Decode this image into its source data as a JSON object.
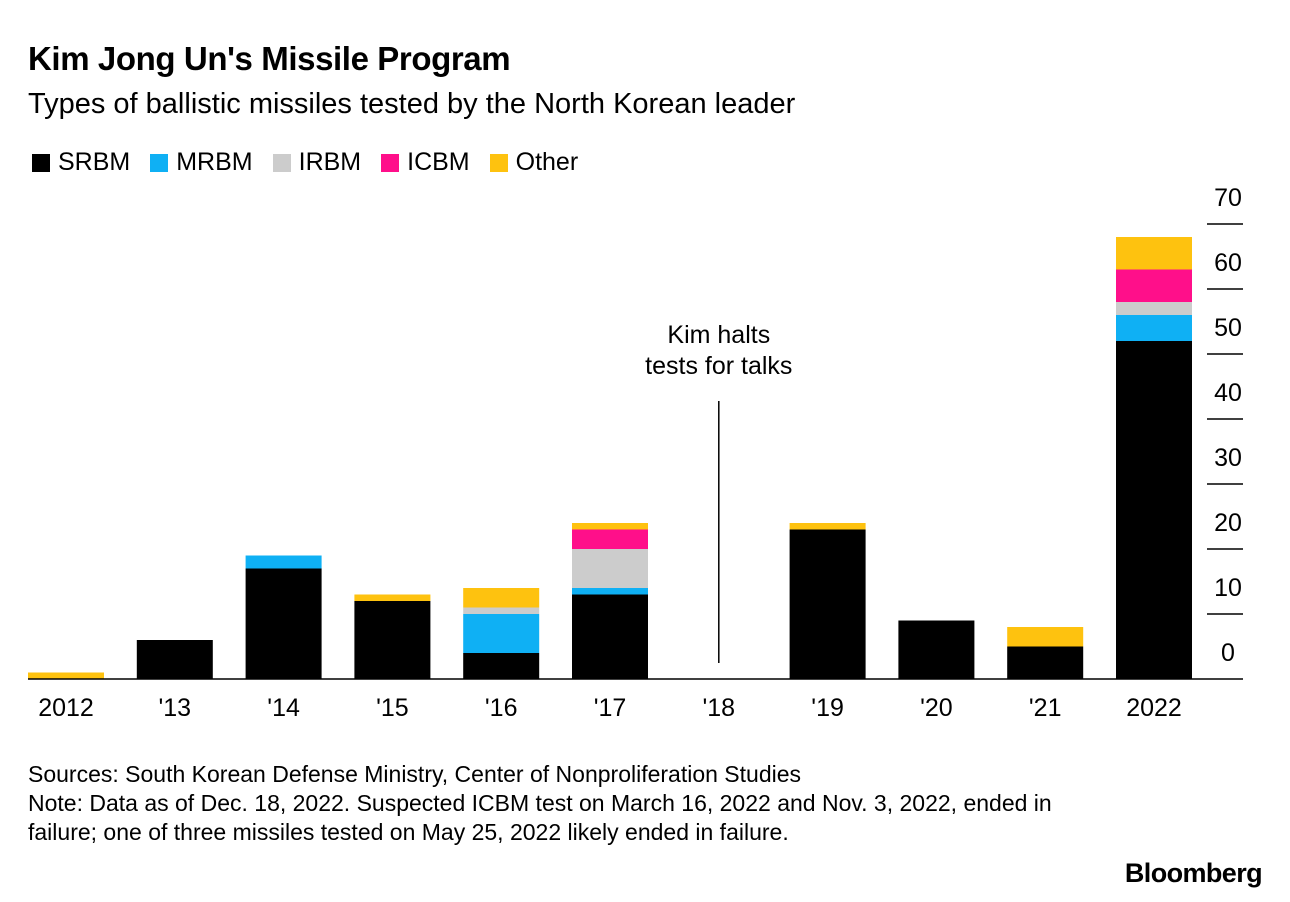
{
  "header": {
    "title": "Kim Jong Un's Missile Program",
    "subtitle": "Types of ballistic missiles tested by the North Korean leader"
  },
  "legend": [
    {
      "label": "SRBM",
      "color": "#000000"
    },
    {
      "label": "MRBM",
      "color": "#0fb0f4"
    },
    {
      "label": "IRBM",
      "color": "#cccccc"
    },
    {
      "label": "ICBM",
      "color": "#ff0f8a"
    },
    {
      "label": "Other",
      "color": "#fec20f"
    }
  ],
  "chart_data": {
    "type": "bar",
    "stacked": true,
    "title": "Kim Jong Un's Missile Program",
    "subtitle": "Types of ballistic missiles tested by the North Korean leader",
    "categories": [
      "2012",
      "'13",
      "'14",
      "'15",
      "'16",
      "'17",
      "'18",
      "'19",
      "'20",
      "'21",
      "2022"
    ],
    "series": [
      {
        "name": "SRBM",
        "color": "#000000",
        "values": [
          0,
          6,
          17,
          12,
          4,
          13,
          0,
          23,
          9,
          5,
          52
        ]
      },
      {
        "name": "MRBM",
        "color": "#0fb0f4",
        "values": [
          0,
          0,
          2,
          0,
          6,
          1,
          0,
          0,
          0,
          0,
          4
        ]
      },
      {
        "name": "IRBM",
        "color": "#cccccc",
        "values": [
          0,
          0,
          0,
          0,
          1,
          6,
          0,
          0,
          0,
          0,
          2
        ]
      },
      {
        "name": "ICBM",
        "color": "#ff0f8a",
        "values": [
          0,
          0,
          0,
          0,
          0,
          3,
          0,
          0,
          0,
          0,
          5
        ]
      },
      {
        "name": "Other",
        "color": "#fec20f",
        "values": [
          1,
          0,
          0,
          1,
          3,
          1,
          0,
          1,
          0,
          3,
          5
        ]
      }
    ],
    "y_ticks": [
      0,
      10,
      20,
      30,
      40,
      50,
      60,
      70
    ],
    "ylim": [
      0,
      70
    ],
    "y_axis_position": "right",
    "xlabel": "",
    "ylabel": "",
    "annotation": {
      "category": "'18",
      "lines": [
        "Kim halts",
        "tests for talks"
      ]
    }
  },
  "footer": {
    "sources": "Sources: South Korean Defense Ministry, Center of Nonproliferation Studies",
    "note": "Note: Data as of Dec. 18, 2022. Suspected ICBM test on March 16, 2022 and Nov. 3, 2022, ended in failure; one of three missiles tested on May 25, 2022 likely ended in failure."
  },
  "brand": "Bloomberg"
}
